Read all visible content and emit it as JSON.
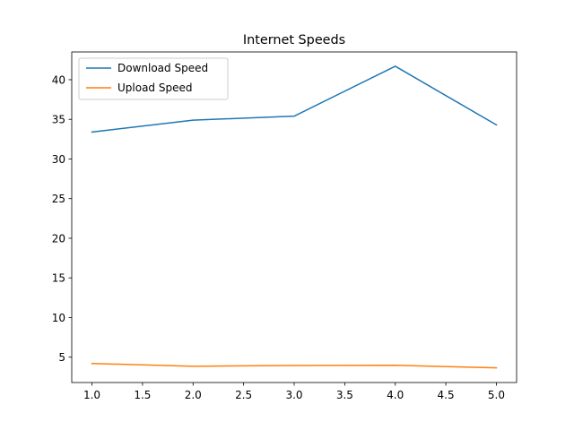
{
  "chart_data": {
    "type": "line",
    "title": "Internet Speeds",
    "xlabel": "",
    "ylabel": "",
    "x": [
      1.0,
      2.0,
      3.0,
      4.0,
      5.0
    ],
    "series": [
      {
        "name": "Download Speed",
        "color": "#1f77b4",
        "values": [
          33.4,
          34.9,
          35.4,
          41.7,
          34.3
        ]
      },
      {
        "name": "Upload Speed",
        "color": "#ff7f0e",
        "values": [
          4.2,
          3.85,
          3.95,
          3.97,
          3.65
        ]
      }
    ],
    "xlim": [
      0.8,
      5.2
    ],
    "ylim": [
      1.8,
      43.5
    ],
    "xticks": [
      1.0,
      1.5,
      2.0,
      2.5,
      3.0,
      3.5,
      4.0,
      4.5,
      5.0
    ],
    "xtick_labels": [
      "1.0",
      "1.5",
      "2.0",
      "2.5",
      "3.0",
      "3.5",
      "4.0",
      "4.5",
      "5.0"
    ],
    "yticks": [
      5,
      10,
      15,
      20,
      25,
      30,
      35,
      40
    ],
    "ytick_labels": [
      "5",
      "10",
      "15",
      "20",
      "25",
      "30",
      "35",
      "40"
    ],
    "grid": false,
    "legend_position": "upper-left"
  }
}
